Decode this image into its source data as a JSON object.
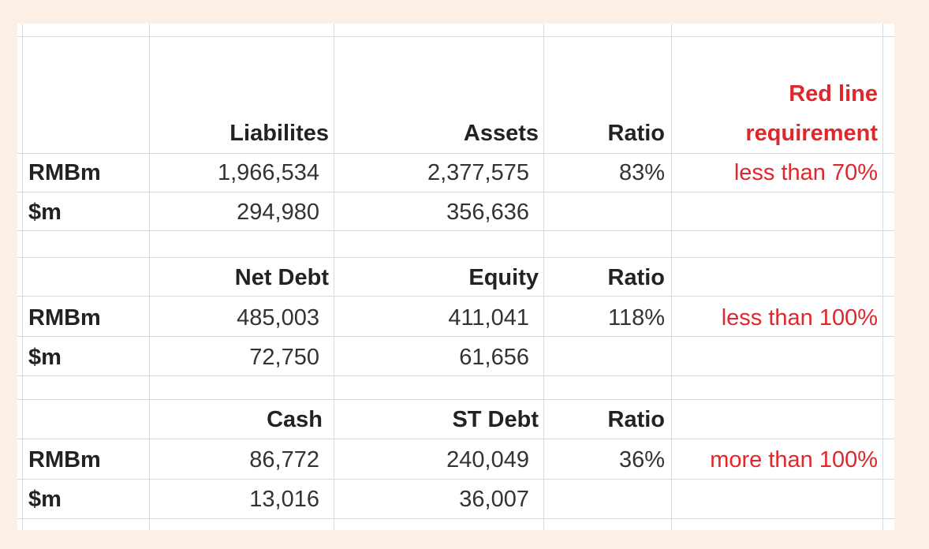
{
  "header": {
    "col_b": "Liabilites",
    "col_c": "Assets",
    "col_d": "Ratio",
    "col_e_line1": "Red line",
    "col_e_line2": "requirement"
  },
  "block1": {
    "rmb": {
      "label": "RMBm",
      "b": "1,966,534",
      "c": "2,377,575",
      "d": "83%",
      "e": "less than 70%"
    },
    "usd": {
      "label": "$m",
      "b": "294,980",
      "c": "356,636"
    }
  },
  "block2": {
    "header": {
      "b": "Net Debt",
      "c": "Equity",
      "d": "Ratio"
    },
    "rmb": {
      "label": "RMBm",
      "b": "485,003",
      "c": "411,041",
      "d": "118%",
      "e": "less than 100%"
    },
    "usd": {
      "label": "$m",
      "b": "72,750",
      "c": "61,656"
    }
  },
  "block3": {
    "header": {
      "b": "Cash",
      "c": "ST Debt",
      "d": "Ratio"
    },
    "rmb": {
      "label": "RMBm",
      "b": "86,772",
      "c": "240,049",
      "d": "36%",
      "e": "more than 100%"
    },
    "usd": {
      "label": "$m",
      "b": "13,016",
      "c": "36,007"
    }
  }
}
